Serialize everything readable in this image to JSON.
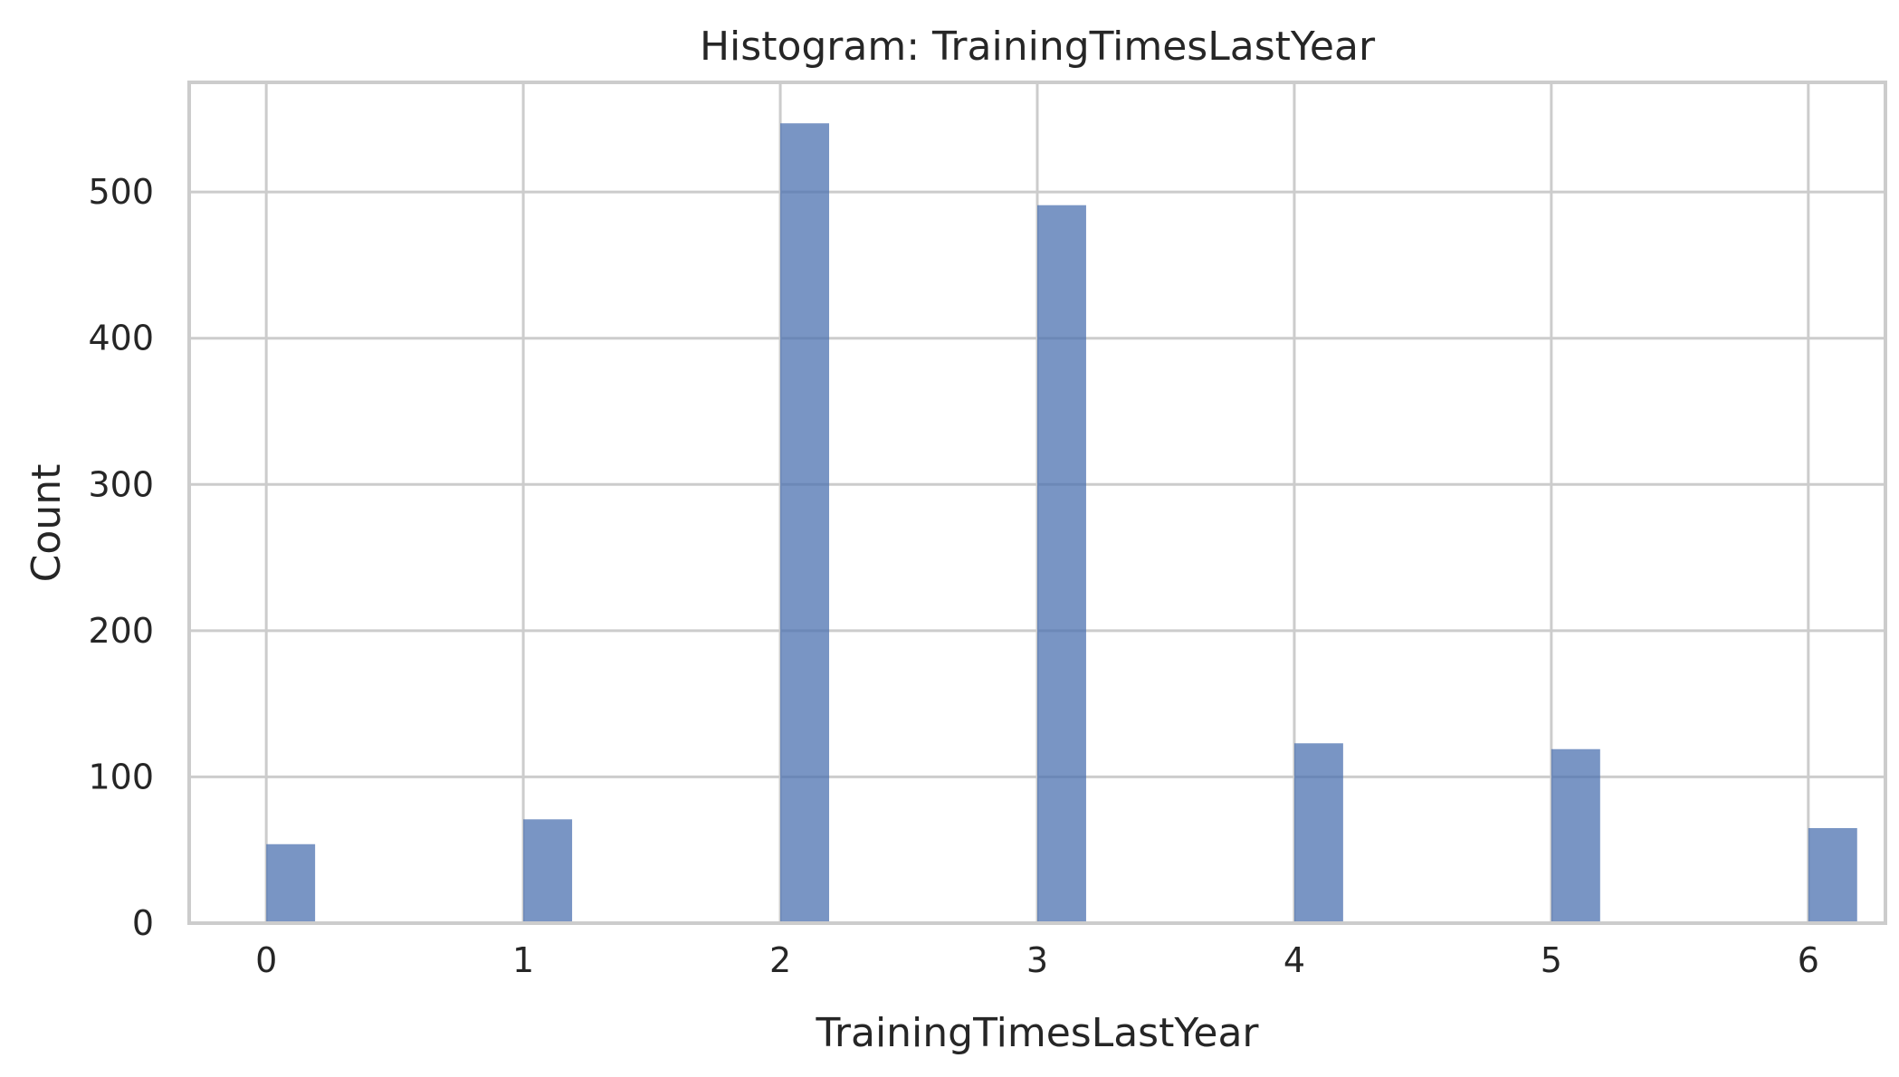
{
  "chart_data": {
    "type": "bar",
    "title": "Histogram: TrainingTimesLastYear",
    "xlabel": "TrainingTimesLastYear",
    "ylabel": "Count",
    "categories": [
      "0",
      "1",
      "2",
      "3",
      "4",
      "5",
      "6"
    ],
    "x": [
      0,
      1,
      2,
      3,
      4,
      5,
      6
    ],
    "values": [
      54,
      71,
      547,
      491,
      123,
      119,
      65
    ],
    "xlim": [
      -0.3,
      6.3
    ],
    "ylim": [
      0,
      575
    ],
    "xticks": [
      0,
      1,
      2,
      3,
      4,
      5,
      6
    ],
    "yticks": [
      0,
      100,
      200,
      300,
      400,
      500
    ],
    "grid": true,
    "colors": {
      "bar": "#4c72b0",
      "grid": "#cccccc",
      "text": "#262626"
    }
  }
}
